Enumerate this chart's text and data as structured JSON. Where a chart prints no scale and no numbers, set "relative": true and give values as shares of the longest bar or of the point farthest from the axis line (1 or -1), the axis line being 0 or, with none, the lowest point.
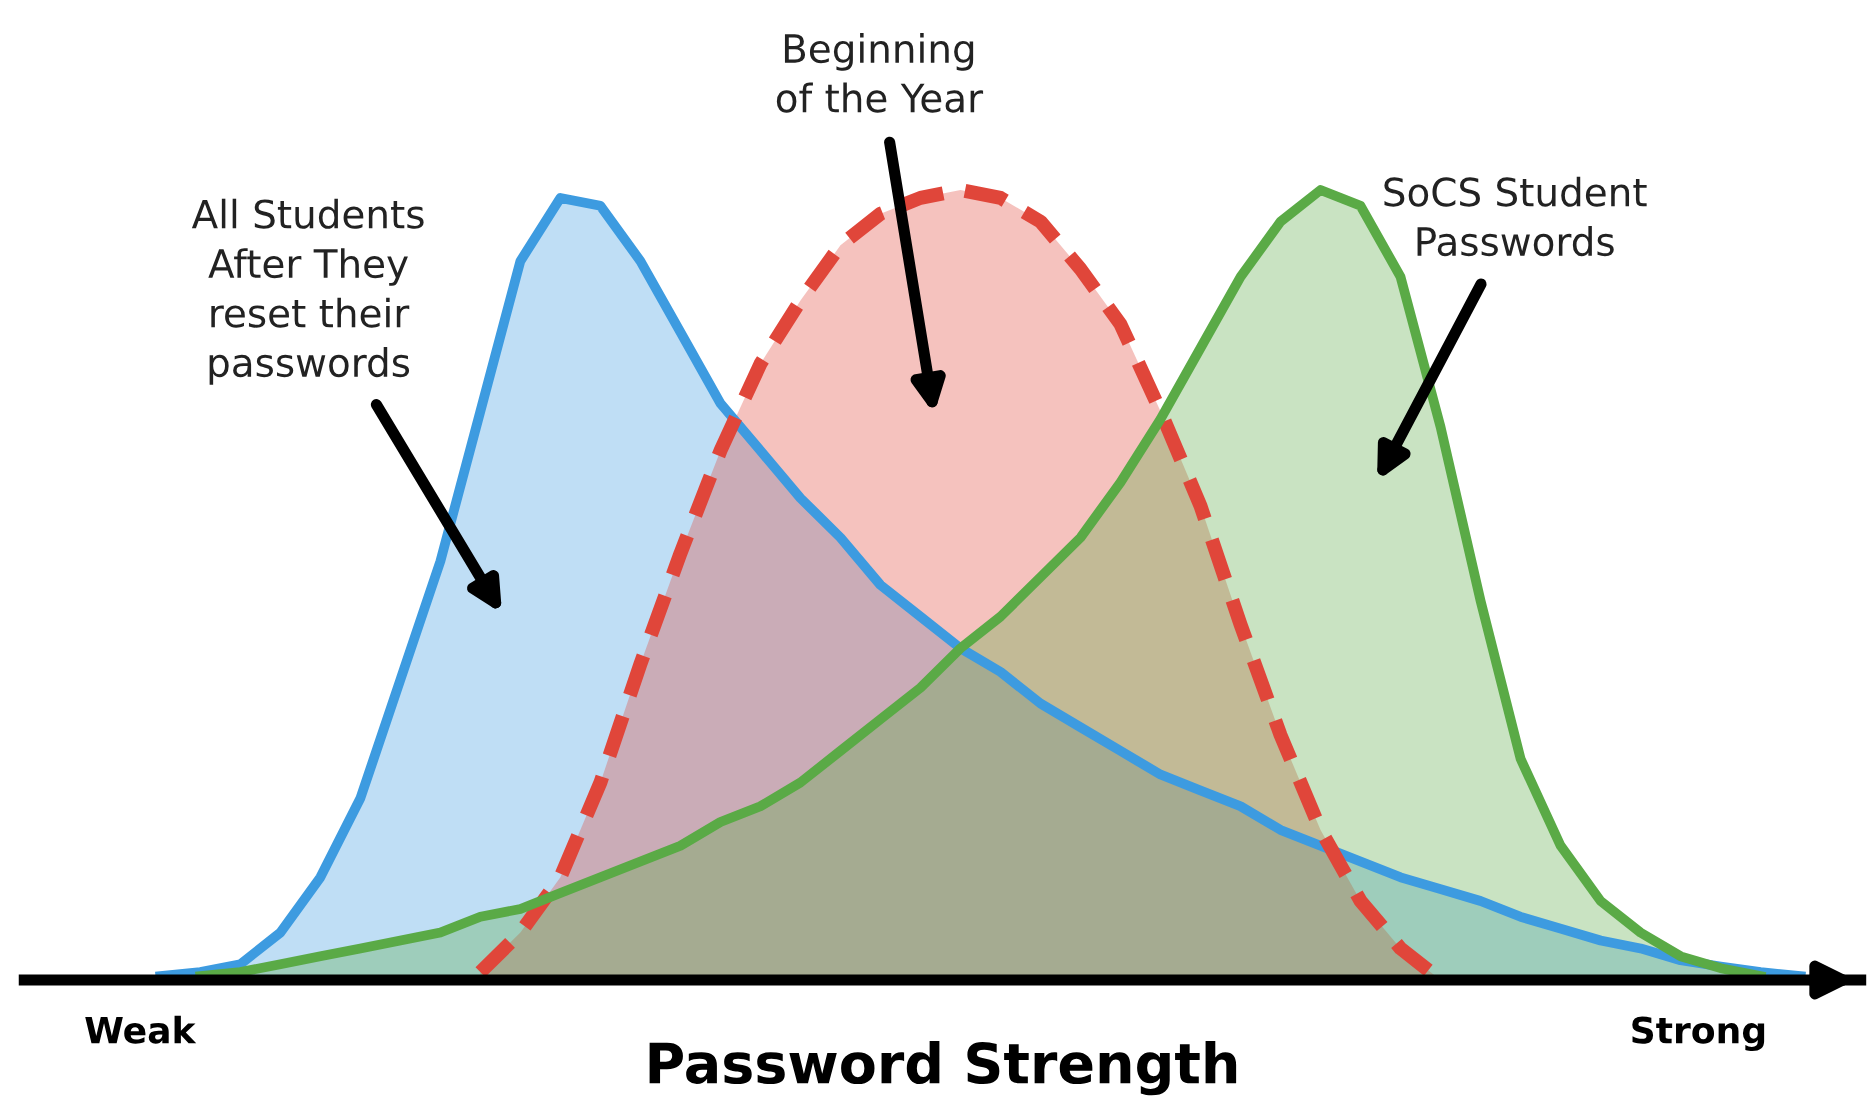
{
  "chart_data": {
    "type": "area",
    "relative": true,
    "xlabel": "Password Strength",
    "legend": false,
    "categories": [
      null,
      null,
      null,
      null,
      null,
      null,
      null,
      null,
      null,
      null,
      null,
      null,
      null,
      null,
      null,
      null,
      null,
      null,
      null,
      null,
      null,
      null,
      null,
      null,
      null,
      null,
      null,
      null,
      null,
      null,
      null,
      null,
      null,
      null,
      null,
      null,
      null,
      null,
      null,
      null,
      null,
      null,
      null,
      null,
      null,
      null
    ],
    "annotations": [
      "Weak",
      "Strong"
    ],
    "series": [
      {
        "name": "All Students\nAfter They\nreset their\npasswords",
        "color": "#3d9be0",
        "line_style": "solid",
        "values": [
          null,
          null,
          null,
          0.005,
          0.01,
          0.02,
          0.06,
          0.13,
          0.23,
          0.38,
          0.53,
          0.72,
          0.91,
          0.99,
          0.98,
          0.91,
          0.82,
          0.73,
          0.67,
          0.61,
          0.56,
          0.5,
          0.46,
          0.42,
          0.39,
          0.35,
          0.32,
          0.29,
          0.26,
          0.24,
          0.22,
          0.19,
          0.17,
          0.15,
          0.13,
          0.115,
          0.1,
          0.08,
          0.065,
          0.05,
          0.04,
          0.025,
          0.017,
          0.01,
          0.005,
          null
        ]
      },
      {
        "name": "Beginning\nof the Year",
        "color": "#e0463a",
        "line_style": "dashed",
        "values": [
          null,
          null,
          null,
          null,
          null,
          null,
          null,
          null,
          null,
          null,
          null,
          0.01,
          0.06,
          0.13,
          0.25,
          0.4,
          0.54,
          0.67,
          0.78,
          0.86,
          0.93,
          0.97,
          0.99,
          1,
          0.99,
          0.96,
          0.9,
          0.83,
          0.72,
          0.6,
          0.45,
          0.31,
          0.19,
          0.1,
          0.04,
          0,
          null,
          null,
          null,
          null,
          null,
          null,
          null,
          null,
          null,
          null
        ]
      },
      {
        "name": "SoCS Student\nPasswords",
        "color": "#5aaa46",
        "line_style": "solid",
        "values": [
          null,
          null,
          null,
          null,
          0.005,
          0.01,
          0.02,
          0.03,
          0.04,
          0.05,
          0.06,
          0.08,
          0.09,
          0.11,
          0.13,
          0.15,
          0.17,
          0.2,
          0.22,
          0.25,
          0.29,
          0.33,
          0.37,
          0.42,
          0.46,
          0.51,
          0.56,
          0.63,
          0.71,
          0.8,
          0.89,
          0.96,
          1,
          0.98,
          0.89,
          0.7,
          0.48,
          0.28,
          0.17,
          0.1,
          0.06,
          0.03,
          0.015,
          0.005,
          null,
          null
        ]
      }
    ]
  }
}
